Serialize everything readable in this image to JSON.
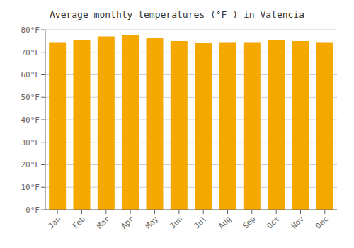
{
  "chart_data": {
    "type": "bar",
    "title": "Average monthly temperatures (°F ) in Valencia",
    "categories": [
      "Jan",
      "Feb",
      "Mar",
      "Apr",
      "May",
      "Jun",
      "Jul",
      "Aug",
      "Sep",
      "Oct",
      "Nov",
      "Dec"
    ],
    "values": [
      74.5,
      75.5,
      77.0,
      77.5,
      76.5,
      75.0,
      74.0,
      74.5,
      74.5,
      75.5,
      75.0,
      74.5
    ],
    "color": "#F5A800",
    "ylim": [
      0,
      80
    ],
    "yticks": [
      {
        "value": 0,
        "label": "0°F"
      },
      {
        "value": 10,
        "label": "10°F"
      },
      {
        "value": 20,
        "label": "20°F"
      },
      {
        "value": 30,
        "label": "30°F"
      },
      {
        "value": 40,
        "label": "40°F"
      },
      {
        "value": 50,
        "label": "50°F"
      },
      {
        "value": 60,
        "label": "60°F"
      },
      {
        "value": 70,
        "label": "70°F"
      },
      {
        "value": 80,
        "label": "80°F"
      }
    ],
    "grid": true
  }
}
